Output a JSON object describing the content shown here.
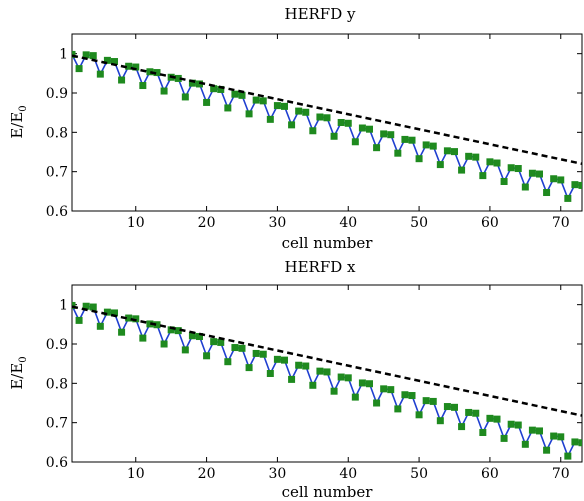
{
  "chart_data": [
    {
      "type": "line",
      "title": "HERFD y",
      "xlabel": "cell number",
      "ylabel": "E/E",
      "ylabel_sub": "0",
      "xlim": [
        1,
        73
      ],
      "ylim": [
        0.6,
        1.05
      ],
      "xticks": [
        10,
        20,
        30,
        40,
        50,
        60,
        70
      ],
      "yticks": [
        0.6,
        0.7,
        0.8,
        0.9,
        1.0
      ],
      "ytick_labels": [
        "0.6",
        "0.7",
        "0.8",
        "0.9",
        "1"
      ],
      "grid": false,
      "colors": {
        "measured": "#1f3fd0",
        "markers": "#1f8a1f",
        "fit": "#000000"
      },
      "fit_line": {
        "x": [
          1,
          73
        ],
        "y": [
          0.995,
          0.72
        ]
      },
      "series": [
        {
          "marker": "square",
          "x": [
            1,
            2,
            3,
            4,
            5,
            6,
            7,
            8,
            9,
            10,
            11,
            12,
            13,
            14,
            15,
            16,
            17,
            18,
            19,
            20,
            21,
            22,
            23,
            24,
            25,
            26,
            27,
            28,
            29,
            30,
            31,
            32,
            33,
            34,
            35,
            36,
            37,
            38,
            39,
            40,
            41,
            42,
            43,
            44,
            45,
            46,
            47,
            48,
            49,
            50,
            51,
            52,
            53,
            54,
            55,
            56,
            57,
            58,
            59,
            60,
            61,
            62,
            63,
            64,
            65,
            66,
            67,
            68,
            69,
            70,
            71,
            72,
            73
          ],
          "y": [
            0.998,
            0.962,
            0.997,
            0.995,
            0.948,
            0.983,
            0.98,
            0.933,
            0.968,
            0.966,
            0.919,
            0.954,
            0.952,
            0.905,
            0.94,
            0.937,
            0.89,
            0.925,
            0.923,
            0.876,
            0.911,
            0.909,
            0.862,
            0.897,
            0.894,
            0.847,
            0.882,
            0.88,
            0.833,
            0.868,
            0.866,
            0.819,
            0.854,
            0.851,
            0.804,
            0.839,
            0.837,
            0.79,
            0.825,
            0.823,
            0.776,
            0.811,
            0.808,
            0.761,
            0.796,
            0.794,
            0.747,
            0.782,
            0.78,
            0.733,
            0.768,
            0.765,
            0.718,
            0.753,
            0.751,
            0.704,
            0.739,
            0.737,
            0.69,
            0.725,
            0.722,
            0.675,
            0.71,
            0.708,
            0.661,
            0.696,
            0.694,
            0.647,
            0.682,
            0.679,
            0.632,
            0.667,
            0.665
          ]
        }
      ]
    },
    {
      "type": "line",
      "title": "HERFD x",
      "xlabel": "cell number",
      "ylabel": "E/E",
      "ylabel_sub": "0",
      "xlim": [
        1,
        73
      ],
      "ylim": [
        0.6,
        1.05
      ],
      "xticks": [
        10,
        20,
        30,
        40,
        50,
        60,
        70
      ],
      "yticks": [
        0.6,
        0.7,
        0.8,
        0.9,
        1.0
      ],
      "ytick_labels": [
        "0.6",
        "0.7",
        "0.8",
        "0.9",
        "1"
      ],
      "grid": false,
      "colors": {
        "measured": "#1f3fd0",
        "markers": "#1f8a1f",
        "fit": "#000000"
      },
      "fit_line": {
        "x": [
          1,
          73
        ],
        "y": [
          0.995,
          0.718
        ]
      },
      "series": [
        {
          "marker": "square",
          "x": [
            1,
            2,
            3,
            4,
            5,
            6,
            7,
            8,
            9,
            10,
            11,
            12,
            13,
            14,
            15,
            16,
            17,
            18,
            19,
            20,
            21,
            22,
            23,
            24,
            25,
            26,
            27,
            28,
            29,
            30,
            31,
            32,
            33,
            34,
            35,
            36,
            37,
            38,
            39,
            40,
            41,
            42,
            43,
            44,
            45,
            46,
            47,
            48,
            49,
            50,
            51,
            52,
            53,
            54,
            55,
            56,
            57,
            58,
            59,
            60,
            61,
            62,
            63,
            64,
            65,
            66,
            67,
            68,
            69,
            70,
            71,
            72,
            73
          ],
          "y": [
            0.998,
            0.96,
            0.996,
            0.994,
            0.945,
            0.981,
            0.979,
            0.93,
            0.966,
            0.964,
            0.915,
            0.951,
            0.949,
            0.9,
            0.936,
            0.934,
            0.885,
            0.921,
            0.919,
            0.87,
            0.906,
            0.904,
            0.855,
            0.891,
            0.889,
            0.84,
            0.876,
            0.874,
            0.825,
            0.861,
            0.859,
            0.81,
            0.846,
            0.844,
            0.795,
            0.831,
            0.829,
            0.78,
            0.816,
            0.814,
            0.765,
            0.801,
            0.799,
            0.75,
            0.786,
            0.784,
            0.735,
            0.771,
            0.769,
            0.72,
            0.756,
            0.754,
            0.705,
            0.741,
            0.739,
            0.69,
            0.726,
            0.724,
            0.675,
            0.711,
            0.709,
            0.66,
            0.696,
            0.694,
            0.645,
            0.681,
            0.679,
            0.63,
            0.666,
            0.664,
            0.615,
            0.651,
            0.649
          ]
        }
      ]
    }
  ]
}
